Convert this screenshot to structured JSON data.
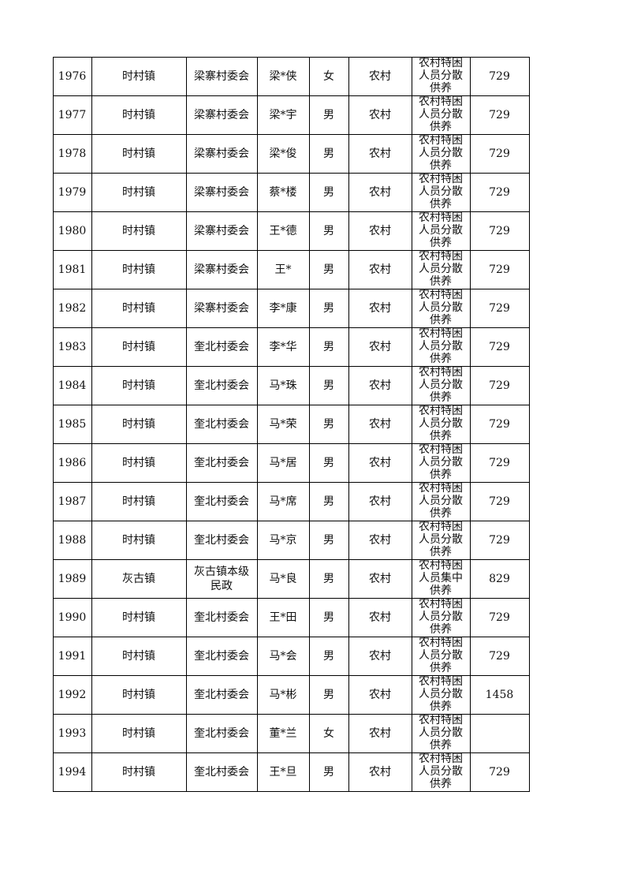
{
  "table": {
    "rows": [
      [
        1976,
        "时村镇",
        "梁寨村委会",
        "梁*侠",
        "女",
        "农村",
        "农村特困人员分散供养",
        729
      ],
      [
        1977,
        "时村镇",
        "梁寨村委会",
        "梁*宇",
        "男",
        "农村",
        "农村特困人员分散供养",
        729
      ],
      [
        1978,
        "时村镇",
        "梁寨村委会",
        "梁*俊",
        "男",
        "农村",
        "农村特困人员分散供养",
        729
      ],
      [
        1979,
        "时村镇",
        "梁寨村委会",
        "蔡*楼",
        "男",
        "农村",
        "农村特困人员分散供养",
        729
      ],
      [
        1980,
        "时村镇",
        "梁寨村委会",
        "王*德",
        "男",
        "农村",
        "农村特困人员分散供养",
        729
      ],
      [
        1981,
        "时村镇",
        "梁寨村委会",
        "王*",
        "男",
        "农村",
        "农村特困人员分散供养",
        729
      ],
      [
        1982,
        "时村镇",
        "梁寨村委会",
        "李*康",
        "男",
        "农村",
        "农村特困人员分散供养",
        729
      ],
      [
        1983,
        "时村镇",
        "奎北村委会",
        "李*华",
        "男",
        "农村",
        "农村特困人员分散供养",
        729
      ],
      [
        1984,
        "时村镇",
        "奎北村委会",
        "马*珠",
        "男",
        "农村",
        "农村特困人员分散供养",
        729
      ],
      [
        1985,
        "时村镇",
        "奎北村委会",
        "马*荣",
        "男",
        "农村",
        "农村特困人员分散供养",
        729
      ],
      [
        1986,
        "时村镇",
        "奎北村委会",
        "马*居",
        "男",
        "农村",
        "农村特困人员分散供养",
        729
      ],
      [
        1987,
        "时村镇",
        "奎北村委会",
        "马*席",
        "男",
        "农村",
        "农村特困人员分散供养",
        729
      ],
      [
        1988,
        "时村镇",
        "奎北村委会",
        "马*京",
        "男",
        "农村",
        "农村特困人员分散供养",
        729
      ],
      [
        1989,
        "灰古镇",
        "灰古镇本级民政",
        "马*良",
        "男",
        "农村",
        "农村特困人员集中供养",
        829
      ],
      [
        1990,
        "时村镇",
        "奎北村委会",
        "王*田",
        "男",
        "农村",
        "农村特困人员分散供养",
        729
      ],
      [
        1991,
        "时村镇",
        "奎北村委会",
        "马*会",
        "男",
        "农村",
        "农村特困人员分散供养",
        729
      ],
      [
        1992,
        "时村镇",
        "奎北村委会",
        "马*彬",
        "男",
        "农村",
        "农村特困人员分散供养",
        1458
      ],
      [
        1993,
        "时村镇",
        "奎北村委会",
        "董*兰",
        "女",
        "农村",
        "农村特困人员分散供养",
        null
      ],
      [
        1994,
        "时村镇",
        "奎北村委会",
        "王*旦",
        "男",
        "农村",
        "农村特困人员分散供养",
        729
      ]
    ]
  }
}
